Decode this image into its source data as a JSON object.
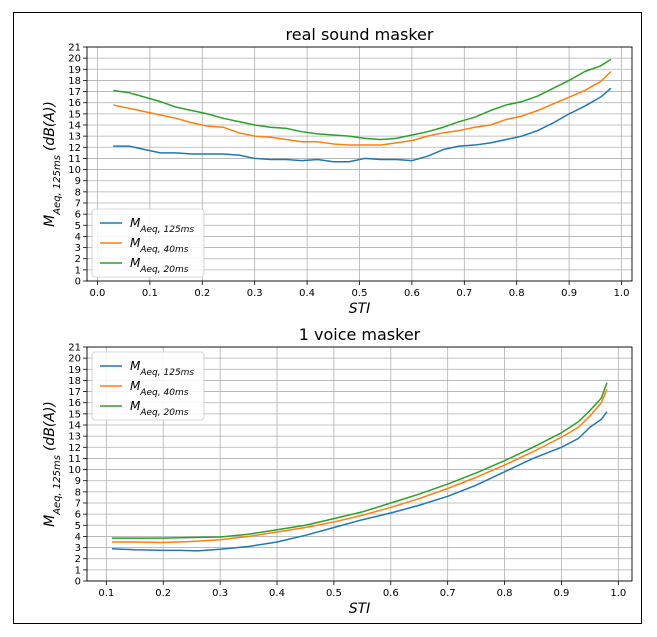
{
  "chart_data": [
    {
      "type": "line",
      "title": "real sound masker",
      "xlabel": "STI",
      "ylabel": "M_Aeq, 125ms (dB(A))",
      "xlim": [
        -0.02,
        1.02
      ],
      "ylim": [
        0,
        21
      ],
      "xticks": [
        0.0,
        0.1,
        0.2,
        0.3,
        0.4,
        0.5,
        0.6,
        0.7,
        0.8,
        0.9,
        1.0
      ],
      "xtick_labels": [
        "0.0",
        "0.1",
        "0.2",
        "0.3",
        "0.4",
        "0.5",
        "0.6",
        "0.7",
        "0.8",
        "0.9",
        "1.0"
      ],
      "yticks": [
        0,
        1,
        2,
        3,
        4,
        5,
        6,
        7,
        8,
        9,
        10,
        11,
        12,
        13,
        14,
        15,
        16,
        17,
        18,
        19,
        20,
        21
      ],
      "grid": true,
      "legend_position": "lower-left",
      "series": [
        {
          "name": "M_Aeq, 125ms",
          "color": "#1f77b4",
          "x": [
            0.03,
            0.06,
            0.09,
            0.12,
            0.15,
            0.18,
            0.21,
            0.24,
            0.27,
            0.3,
            0.33,
            0.36,
            0.39,
            0.42,
            0.45,
            0.48,
            0.51,
            0.54,
            0.57,
            0.6,
            0.63,
            0.66,
            0.69,
            0.72,
            0.75,
            0.78,
            0.81,
            0.84,
            0.87,
            0.9,
            0.93,
            0.96,
            0.98
          ],
          "y": [
            12.1,
            12.1,
            11.8,
            11.5,
            11.5,
            11.4,
            11.4,
            11.4,
            11.3,
            11.0,
            10.9,
            10.9,
            10.8,
            10.9,
            10.7,
            10.7,
            11.0,
            10.9,
            10.9,
            10.8,
            11.2,
            11.8,
            12.1,
            12.2,
            12.4,
            12.7,
            13.0,
            13.5,
            14.2,
            15.0,
            15.7,
            16.5,
            17.3
          ]
        },
        {
          "name": "M_Aeq, 40ms",
          "color": "#ff7f0e",
          "x": [
            0.03,
            0.06,
            0.09,
            0.12,
            0.15,
            0.18,
            0.21,
            0.24,
            0.27,
            0.3,
            0.33,
            0.36,
            0.39,
            0.42,
            0.45,
            0.48,
            0.51,
            0.54,
            0.57,
            0.6,
            0.63,
            0.66,
            0.69,
            0.72,
            0.75,
            0.78,
            0.81,
            0.84,
            0.87,
            0.9,
            0.93,
            0.96,
            0.98
          ],
          "y": [
            15.8,
            15.5,
            15.2,
            14.9,
            14.6,
            14.2,
            13.9,
            13.8,
            13.3,
            13.0,
            12.9,
            12.7,
            12.5,
            12.5,
            12.3,
            12.2,
            12.2,
            12.2,
            12.4,
            12.6,
            13.0,
            13.3,
            13.5,
            13.8,
            14.0,
            14.5,
            14.8,
            15.3,
            15.9,
            16.5,
            17.1,
            17.9,
            18.8
          ]
        },
        {
          "name": "M_Aeq, 20ms",
          "color": "#2ca02c",
          "x": [
            0.03,
            0.06,
            0.09,
            0.12,
            0.15,
            0.18,
            0.21,
            0.24,
            0.27,
            0.3,
            0.33,
            0.36,
            0.39,
            0.42,
            0.45,
            0.48,
            0.51,
            0.54,
            0.57,
            0.6,
            0.63,
            0.66,
            0.69,
            0.72,
            0.75,
            0.78,
            0.81,
            0.84,
            0.87,
            0.9,
            0.93,
            0.96,
            0.98
          ],
          "y": [
            17.1,
            16.9,
            16.5,
            16.1,
            15.6,
            15.3,
            15.0,
            14.6,
            14.3,
            14.0,
            13.8,
            13.7,
            13.4,
            13.2,
            13.1,
            13.0,
            12.8,
            12.7,
            12.8,
            13.1,
            13.4,
            13.8,
            14.3,
            14.7,
            15.3,
            15.8,
            16.1,
            16.6,
            17.3,
            18.0,
            18.8,
            19.3,
            19.9
          ]
        }
      ]
    },
    {
      "type": "line",
      "title": "1 voice masker",
      "xlabel": "STI",
      "ylabel": "M_Aeq, 125ms (dB(A))",
      "xlim": [
        0.066,
        1.024
      ],
      "ylim": [
        0,
        21
      ],
      "xticks": [
        0.1,
        0.2,
        0.3,
        0.4,
        0.5,
        0.6,
        0.7,
        0.8,
        0.9,
        1.0
      ],
      "xtick_labels": [
        "0.1",
        "0.2",
        "0.3",
        "0.4",
        "0.5",
        "0.6",
        "0.7",
        "0.8",
        "0.9",
        "1.0"
      ],
      "yticks": [
        0,
        1,
        2,
        3,
        4,
        5,
        6,
        7,
        8,
        9,
        10,
        11,
        12,
        13,
        14,
        15,
        16,
        17,
        18,
        19,
        20,
        21
      ],
      "grid": true,
      "legend_position": "upper-left",
      "series": [
        {
          "name": "M_Aeq, 125ms",
          "color": "#1f77b4",
          "x": [
            0.11,
            0.15,
            0.2,
            0.23,
            0.26,
            0.3,
            0.35,
            0.4,
            0.45,
            0.5,
            0.55,
            0.6,
            0.65,
            0.7,
            0.75,
            0.8,
            0.85,
            0.9,
            0.93,
            0.95,
            0.97,
            0.98
          ],
          "y": [
            2.9,
            2.8,
            2.75,
            2.75,
            2.7,
            2.85,
            3.1,
            3.5,
            4.1,
            4.8,
            5.5,
            6.1,
            6.8,
            7.6,
            8.6,
            9.8,
            11.0,
            12.0,
            12.8,
            13.8,
            14.5,
            15.2
          ]
        },
        {
          "name": "M_Aeq, 40ms",
          "color": "#ff7f0e",
          "x": [
            0.11,
            0.15,
            0.2,
            0.25,
            0.3,
            0.35,
            0.4,
            0.45,
            0.5,
            0.55,
            0.6,
            0.65,
            0.7,
            0.75,
            0.8,
            0.85,
            0.9,
            0.93,
            0.95,
            0.97,
            0.98
          ],
          "y": [
            3.5,
            3.5,
            3.45,
            3.55,
            3.7,
            4.0,
            4.4,
            4.8,
            5.3,
            5.9,
            6.6,
            7.4,
            8.3,
            9.3,
            10.4,
            11.6,
            12.9,
            13.8,
            14.8,
            16.0,
            17.2
          ]
        },
        {
          "name": "M_Aeq, 20ms",
          "color": "#2ca02c",
          "x": [
            0.11,
            0.15,
            0.2,
            0.25,
            0.3,
            0.35,
            0.4,
            0.45,
            0.5,
            0.55,
            0.6,
            0.65,
            0.7,
            0.75,
            0.8,
            0.85,
            0.9,
            0.93,
            0.95,
            0.97,
            0.98
          ],
          "y": [
            3.85,
            3.85,
            3.85,
            3.9,
            3.95,
            4.2,
            4.6,
            5.0,
            5.6,
            6.2,
            7.0,
            7.8,
            8.7,
            9.7,
            10.8,
            12.0,
            13.3,
            14.3,
            15.3,
            16.4,
            17.8
          ]
        }
      ]
    }
  ]
}
